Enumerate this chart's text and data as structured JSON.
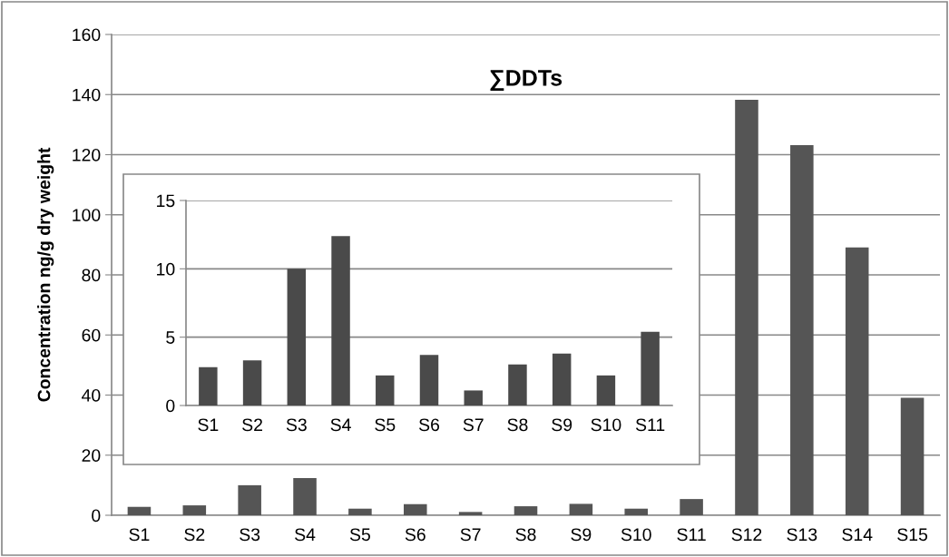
{
  "chart_data": [
    {
      "type": "bar",
      "title": "∑DDTs",
      "ylabel": "Concentration ng/g dry weight",
      "categories": [
        "S1",
        "S2",
        "S3",
        "S4",
        "S5",
        "S6",
        "S7",
        "S8",
        "S9",
        "S10",
        "S11",
        "S12",
        "S13",
        "S14",
        "S15"
      ],
      "values": [
        2.8,
        3.3,
        10.0,
        12.4,
        2.2,
        3.7,
        1.1,
        3.0,
        3.8,
        2.2,
        5.4,
        138.3,
        123.2,
        89.1,
        39.1
      ],
      "color": "#555555",
      "ylim": [
        0,
        160
      ],
      "yticks": [
        0,
        20,
        40,
        60,
        80,
        100,
        120,
        140,
        160
      ],
      "grid": "y"
    },
    {
      "type": "bar",
      "categories": [
        "S1",
        "S2",
        "S3",
        "S4",
        "S5",
        "S6",
        "S7",
        "S8",
        "S9",
        "S10",
        "S11"
      ],
      "values": [
        2.8,
        3.3,
        10.0,
        12.4,
        2.2,
        3.7,
        1.1,
        3.0,
        3.8,
        2.2,
        5.4
      ],
      "color": "#4a4a4a",
      "ylim": [
        0,
        15
      ],
      "yticks": [
        0,
        5,
        10,
        15
      ],
      "grid": "y"
    }
  ]
}
